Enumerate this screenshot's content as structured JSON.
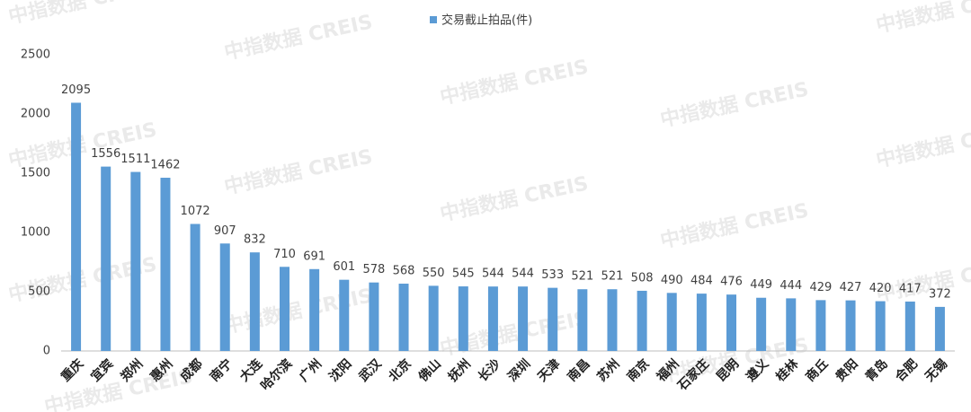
{
  "chart_data": {
    "type": "bar",
    "watermark": "中指数据 CREIS",
    "series": [
      {
        "name": "交易截止拍品(件)",
        "color": "#5b9bd5",
        "values": [
          2095,
          1556,
          1511,
          1462,
          1072,
          907,
          832,
          710,
          691,
          601,
          578,
          568,
          550,
          545,
          544,
          544,
          533,
          521,
          521,
          508,
          490,
          484,
          476,
          449,
          444,
          429,
          427,
          420,
          417,
          372
        ]
      }
    ],
    "categories": [
      "重庆",
      "宜宾",
      "郑州",
      "惠州",
      "成都",
      "南宁",
      "大连",
      "哈尔滨",
      "广州",
      "沈阳",
      "武汉",
      "北京",
      "佛山",
      "抚州",
      "长沙",
      "深圳",
      "天津",
      "南昌",
      "苏州",
      "南京",
      "福州",
      "石家庄",
      "昆明",
      "遵义",
      "桂林",
      "商丘",
      "贵阳",
      "青岛",
      "合肥",
      "无锡"
    ],
    "ylim": [
      0,
      2500
    ],
    "yticks": [
      0,
      500,
      1000,
      1500,
      2000,
      2500
    ],
    "grid": false,
    "legend": "top"
  }
}
